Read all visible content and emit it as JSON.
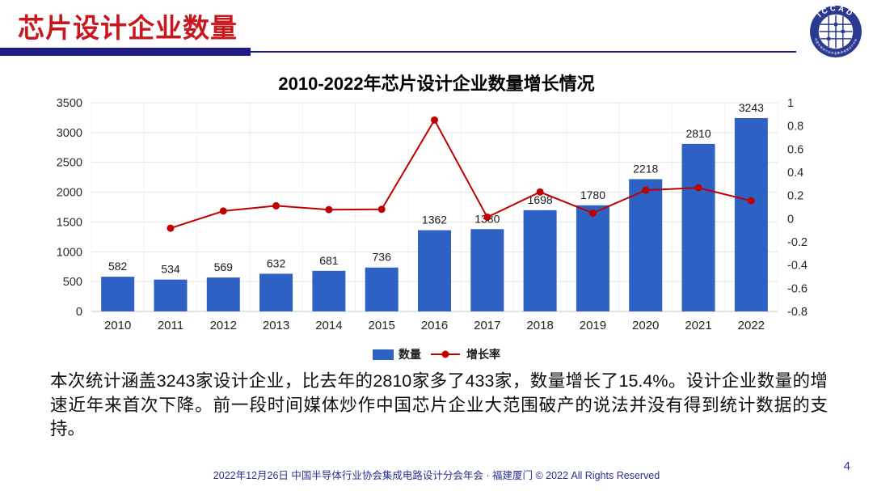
{
  "header": {
    "title": "芯片设计企业数量",
    "logo": {
      "acronym": "ICCAD",
      "ring_text": "中国半导体行业协会集成电路设计分会"
    }
  },
  "chart": {
    "title": "2010-2022年芯片设计企业数量增长情况"
  },
  "chart_data": {
    "type": "bar",
    "subtype": "bar+line combo, dual axis",
    "title": "2010-2022年芯片设计企业数量增长情况",
    "categories": [
      "2010",
      "2011",
      "2012",
      "2013",
      "2014",
      "2015",
      "2016",
      "2017",
      "2018",
      "2019",
      "2020",
      "2021",
      "2022"
    ],
    "series": [
      {
        "name": "数量",
        "type": "bar",
        "axis": "left",
        "color": "#2D62C4",
        "values": [
          582,
          534,
          569,
          632,
          681,
          736,
          1362,
          1380,
          1698,
          1780,
          2218,
          2810,
          3243
        ]
      },
      {
        "name": "增长率",
        "type": "line",
        "axis": "right",
        "color": "#C00000",
        "values": [
          null,
          -0.082,
          0.066,
          0.111,
          0.078,
          0.081,
          0.851,
          0.013,
          0.23,
          0.048,
          0.246,
          0.267,
          0.154
        ]
      }
    ],
    "left_axis": {
      "min": 0,
      "max": 3500,
      "ticks": [
        0,
        500,
        1000,
        1500,
        2000,
        2500,
        3000,
        3500
      ]
    },
    "right_axis": {
      "min": -0.8,
      "max": 1,
      "ticks": [
        "1",
        "0.8",
        "0.6",
        "0.4",
        "0.2",
        "0",
        "-0.2",
        "-0.4",
        "-0.6",
        "-0.8"
      ]
    },
    "grid": true,
    "bar_labels_shown": true,
    "legend_position": "bottom"
  },
  "body": {
    "paragraph": "本次统计涵盖3243家设计企业，比去年的2810家多了433家，数量增长了15.4%。设计企业数量的增速近年来首次下降。前一段时间媒体炒作中国芯片企业大范围破产的说法并没有得到统计数据的支持。"
  },
  "footer": {
    "text": "2022年12月26日 中国半导体行业协会集成电路设计分会年会 · 福建厦门 © 2022 All Rights Reserved",
    "page_number": "4"
  },
  "colors": {
    "title_red": "#C9171E",
    "rule_navy": "#1B1B80",
    "bar_blue": "#2D62C4",
    "line_red": "#C00000",
    "footer_blue": "#2B2D90",
    "grid_h": "#e4e4e4",
    "grid_v": "#f0f0f0",
    "axis_line": "#c9c9c9"
  }
}
